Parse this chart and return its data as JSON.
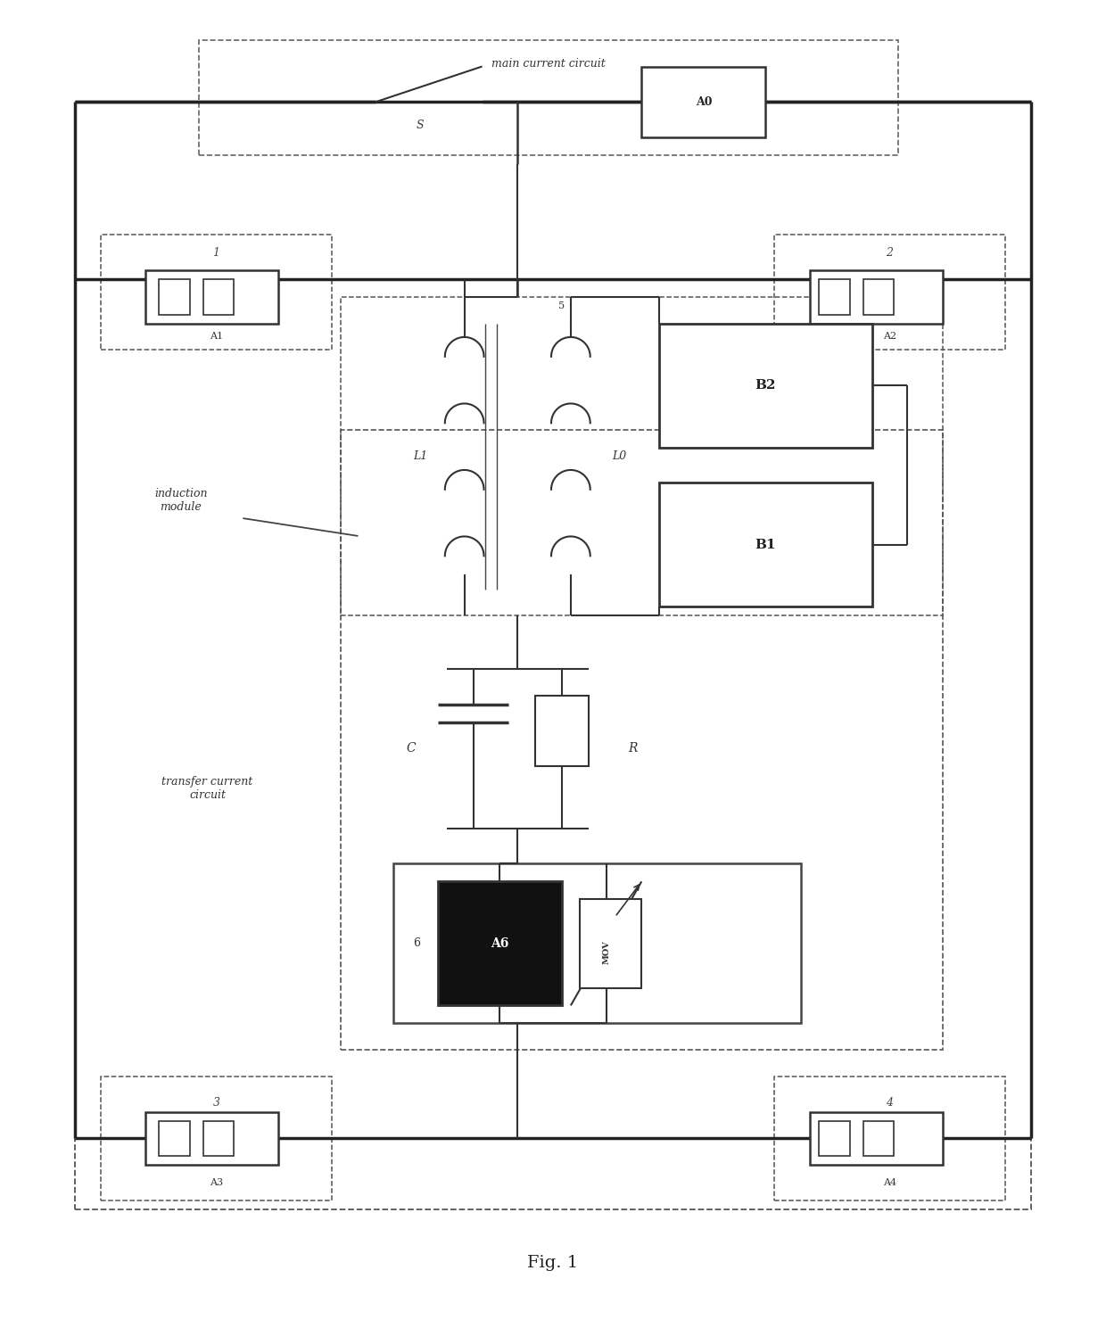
{
  "fig_width": 12.4,
  "fig_height": 14.8,
  "bg_color": "#ffffff",
  "title": "Fig. 1",
  "labels": {
    "main_current_circuit": "main current circuit",
    "transfer_current_circuit": "transfer current\ncircuit",
    "induction_module": "induction\nmodule",
    "A0": "A0",
    "A1": "A1",
    "A2": "A2",
    "A3": "A3",
    "A4": "A4",
    "A6": "A6",
    "B1": "B1",
    "B2": "B2",
    "L1": "L1",
    "L0": "L0",
    "C": "C",
    "R": "R",
    "S": "S",
    "n5": "5",
    "n6": "6",
    "n1": "1",
    "n2": "2",
    "n3": "3",
    "n4": "4",
    "MOV": "MOV"
  }
}
